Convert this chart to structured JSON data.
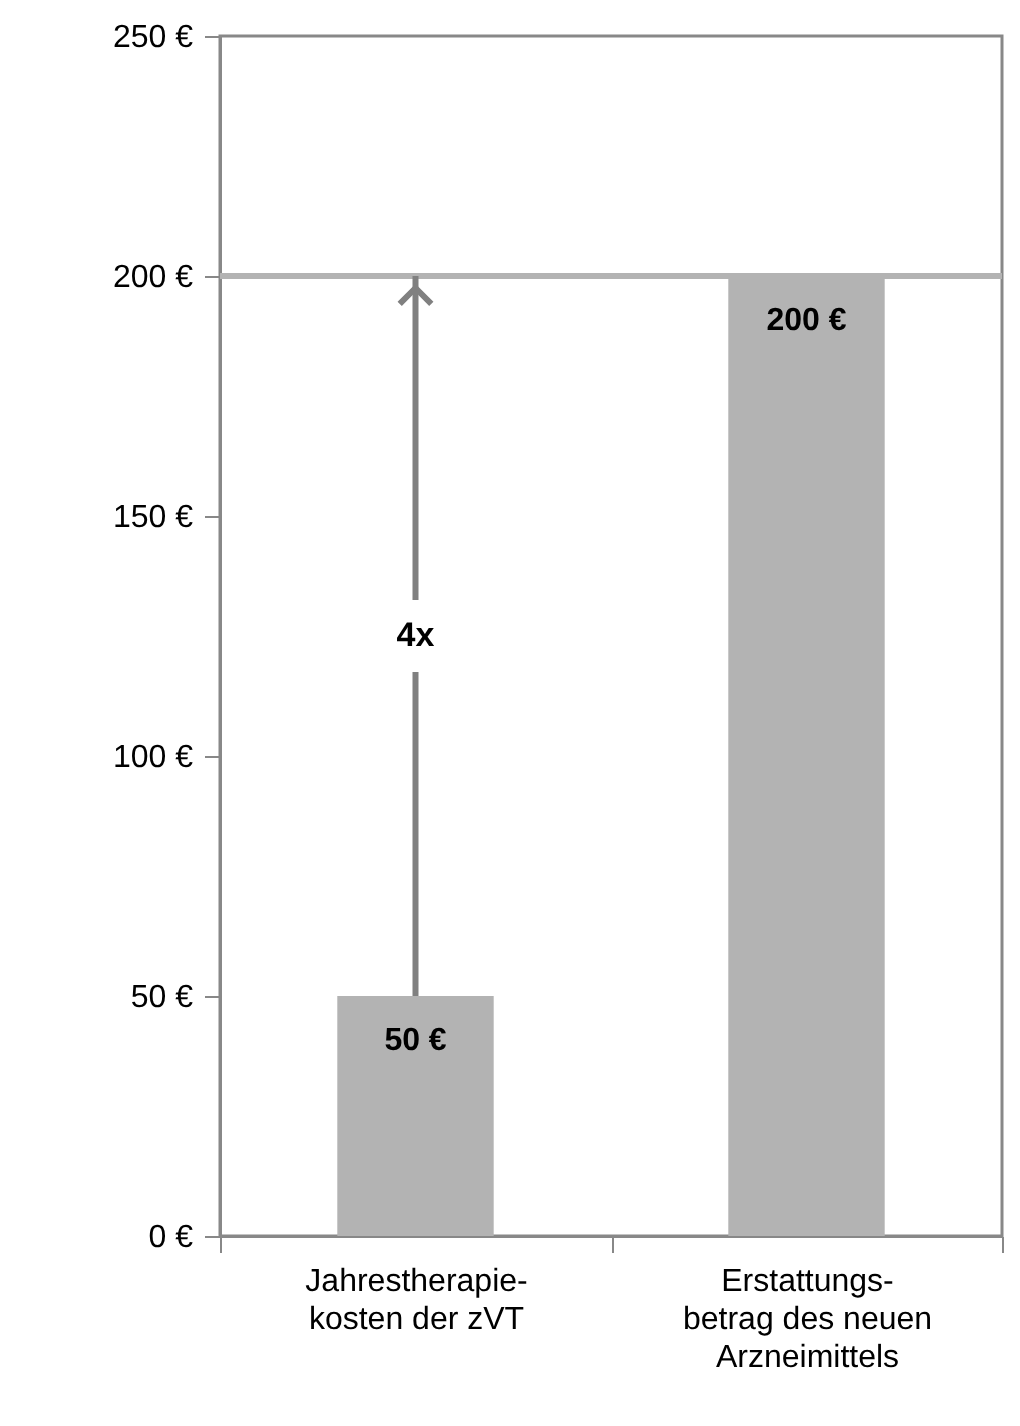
{
  "chart_data": {
    "type": "bar",
    "categories": [
      "Jahrestherapie-\nkosten der zVT",
      "Erstattungs-\nbetrag des neuen\nArzneimittels"
    ],
    "values": [
      50,
      200
    ],
    "color": "#b3b3b3",
    "value_labels": [
      "50 €",
      "200 €"
    ],
    "ylim": [
      0,
      250
    ],
    "yticks": [
      {
        "value": 0,
        "label": "0 €"
      },
      {
        "value": 50,
        "label": "50 €"
      },
      {
        "value": 100,
        "label": "100 €"
      },
      {
        "value": 150,
        "label": "150 €"
      },
      {
        "value": 200,
        "label": "200 €"
      },
      {
        "value": 250,
        "label": "250 €"
      }
    ],
    "ref_lines": [
      {
        "axis": "y",
        "value": 200,
        "color": "#b3b3b3"
      }
    ],
    "annotations": [
      {
        "text": "4x",
        "x": "Jahrestherapie-\nkosten der zVT",
        "y": 125
      }
    ],
    "grid": false
  }
}
